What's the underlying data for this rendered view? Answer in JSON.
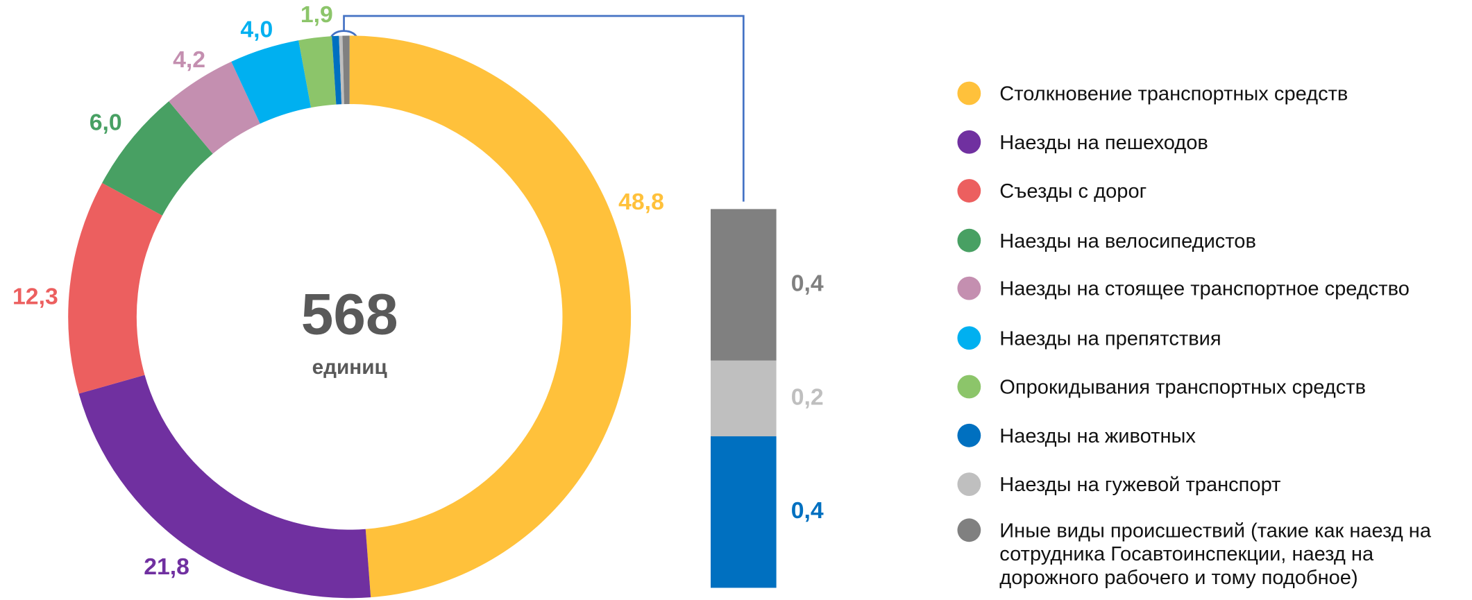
{
  "chart_data": {
    "type": "pie",
    "categories": [
      "Столкновение транспортных средств",
      "Наезды на пешеходов",
      "Съезды с дорог",
      "Наезды на велосипедистов",
      "Наезды на стоящее транспортное средство",
      "Наезды на препятствия",
      "Опрокидывания транспортных средств",
      "Наезды на животных",
      "Наезды на гужевой транспорт",
      "Иные виды происшествий (такие как наезд на сотрудника Госавтоинспекции, наезд на дорожного рабочего и тому подобное)"
    ],
    "values": [
      48.8,
      21.8,
      12.3,
      6.0,
      4.2,
      4.0,
      1.9,
      0.4,
      0.2,
      0.4
    ],
    "value_labels": [
      "48,8",
      "21,8",
      "12,3",
      "6,0",
      "4,2",
      "4,0",
      "1,9",
      "0,4",
      "0,2",
      "0,4"
    ],
    "colors": [
      "#FFC13B",
      "#7030A0",
      "#EC5F5F",
      "#48A063",
      "#C48FB0",
      "#00B0F0",
      "#8CC56A",
      "#0070C0",
      "#BFBFBF",
      "#808080"
    ],
    "total": 568,
    "total_label": "единиц"
  }
}
